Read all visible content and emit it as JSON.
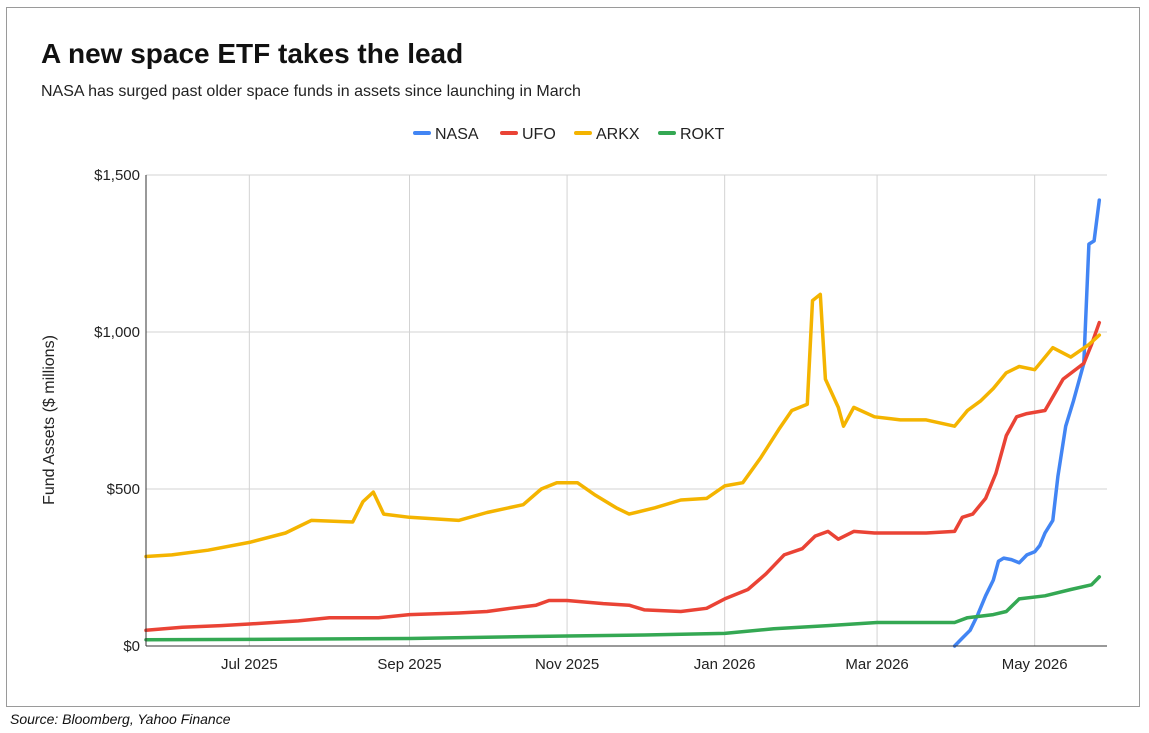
{
  "title": "A new space ETF takes the lead",
  "subtitle": "NASA has surged past older space funds in assets since launching in March",
  "source": "Source: Bloomberg, Yahoo Finance",
  "chart_data": {
    "type": "line",
    "title": "A new space ETF takes the lead",
    "subtitle": "NASA has surged past older space funds in assets since launching in March",
    "xlabel": "",
    "ylabel": "Fund Assets ($ millions)",
    "ylim": [
      0,
      1500
    ],
    "yticks": [
      0,
      500,
      1000,
      1500
    ],
    "ytick_labels": [
      "$0",
      "$500",
      "$1,000",
      "$1,500"
    ],
    "xlim": [
      "2025-05-22",
      "2026-05-29"
    ],
    "xticks": [
      {
        "date": "2025-07-01",
        "label": "Jul 2025"
      },
      {
        "date": "2025-09-01",
        "label": "Sep 2025"
      },
      {
        "date": "2025-11-01",
        "label": "Nov 2025"
      },
      {
        "date": "2026-01-01",
        "label": "Jan 2026"
      },
      {
        "date": "2026-03-01",
        "label": "Mar 2026"
      },
      {
        "date": "2026-05-01",
        "label": "May 2026"
      }
    ],
    "grid": true,
    "legend_position": "top-center",
    "series": [
      {
        "name": "NASA",
        "color": "#4285F4",
        "points": [
          [
            "2026-03-31",
            0
          ],
          [
            "2026-04-03",
            25
          ],
          [
            "2026-04-06",
            50
          ],
          [
            "2026-04-09",
            100
          ],
          [
            "2026-04-12",
            160
          ],
          [
            "2026-04-15",
            210
          ],
          [
            "2026-04-17",
            270
          ],
          [
            "2026-04-19",
            280
          ],
          [
            "2026-04-22",
            275
          ],
          [
            "2026-04-25",
            265
          ],
          [
            "2026-04-28",
            290
          ],
          [
            "2026-05-01",
            300
          ],
          [
            "2026-05-03",
            320
          ],
          [
            "2026-05-05",
            360
          ],
          [
            "2026-05-08",
            400
          ],
          [
            "2026-05-10",
            540
          ],
          [
            "2026-05-13",
            700
          ],
          [
            "2026-05-16",
            780
          ],
          [
            "2026-05-20",
            900
          ],
          [
            "2026-05-22",
            1280
          ],
          [
            "2026-05-24",
            1290
          ],
          [
            "2026-05-26",
            1420
          ]
        ]
      },
      {
        "name": "UFO",
        "color": "#EA4335",
        "points": [
          [
            "2025-05-22",
            50
          ],
          [
            "2025-06-05",
            60
          ],
          [
            "2025-06-20",
            65
          ],
          [
            "2025-07-01",
            70
          ],
          [
            "2025-07-20",
            80
          ],
          [
            "2025-08-01",
            90
          ],
          [
            "2025-08-20",
            90
          ],
          [
            "2025-09-01",
            100
          ],
          [
            "2025-09-20",
            105
          ],
          [
            "2025-10-01",
            110
          ],
          [
            "2025-10-10",
            120
          ],
          [
            "2025-10-20",
            130
          ],
          [
            "2025-10-25",
            145
          ],
          [
            "2025-11-01",
            145
          ],
          [
            "2025-11-15",
            135
          ],
          [
            "2025-11-25",
            130
          ],
          [
            "2025-12-01",
            115
          ],
          [
            "2025-12-15",
            110
          ],
          [
            "2025-12-25",
            120
          ],
          [
            "2026-01-01",
            150
          ],
          [
            "2026-01-10",
            180
          ],
          [
            "2026-01-17",
            230
          ],
          [
            "2026-01-24",
            290
          ],
          [
            "2026-01-31",
            310
          ],
          [
            "2026-02-05",
            350
          ],
          [
            "2026-02-10",
            365
          ],
          [
            "2026-02-14",
            340
          ],
          [
            "2026-02-20",
            365
          ],
          [
            "2026-02-28",
            360
          ],
          [
            "2026-03-10",
            360
          ],
          [
            "2026-03-20",
            360
          ],
          [
            "2026-03-31",
            365
          ],
          [
            "2026-04-03",
            410
          ],
          [
            "2026-04-07",
            420
          ],
          [
            "2026-04-12",
            470
          ],
          [
            "2026-04-16",
            550
          ],
          [
            "2026-04-20",
            670
          ],
          [
            "2026-04-24",
            730
          ],
          [
            "2026-04-28",
            740
          ],
          [
            "2026-05-05",
            750
          ],
          [
            "2026-05-12",
            850
          ],
          [
            "2026-05-20",
            900
          ],
          [
            "2026-05-23",
            960
          ],
          [
            "2026-05-26",
            1030
          ]
        ]
      },
      {
        "name": "ARKX",
        "color": "#F4B400",
        "points": [
          [
            "2025-05-22",
            285
          ],
          [
            "2025-06-01",
            290
          ],
          [
            "2025-06-15",
            305
          ],
          [
            "2025-07-01",
            330
          ],
          [
            "2025-07-15",
            360
          ],
          [
            "2025-07-25",
            400
          ],
          [
            "2025-08-10",
            395
          ],
          [
            "2025-08-14",
            460
          ],
          [
            "2025-08-18",
            490
          ],
          [
            "2025-08-22",
            420
          ],
          [
            "2025-09-01",
            410
          ],
          [
            "2025-09-20",
            400
          ],
          [
            "2025-10-01",
            425
          ],
          [
            "2025-10-15",
            450
          ],
          [
            "2025-10-22",
            500
          ],
          [
            "2025-10-28",
            520
          ],
          [
            "2025-11-05",
            520
          ],
          [
            "2025-11-12",
            480
          ],
          [
            "2025-11-20",
            440
          ],
          [
            "2025-11-25",
            420
          ],
          [
            "2025-12-05",
            440
          ],
          [
            "2025-12-15",
            465
          ],
          [
            "2025-12-25",
            470
          ],
          [
            "2026-01-01",
            510
          ],
          [
            "2026-01-08",
            520
          ],
          [
            "2026-01-15",
            600
          ],
          [
            "2026-01-22",
            690
          ],
          [
            "2026-01-27",
            750
          ],
          [
            "2026-02-02",
            770
          ],
          [
            "2026-02-04",
            1100
          ],
          [
            "2026-02-07",
            1120
          ],
          [
            "2026-02-09",
            850
          ],
          [
            "2026-02-14",
            760
          ],
          [
            "2026-02-16",
            700
          ],
          [
            "2026-02-20",
            760
          ],
          [
            "2026-02-28",
            730
          ],
          [
            "2026-03-10",
            720
          ],
          [
            "2026-03-20",
            720
          ],
          [
            "2026-03-31",
            700
          ],
          [
            "2026-04-05",
            750
          ],
          [
            "2026-04-10",
            780
          ],
          [
            "2026-04-15",
            820
          ],
          [
            "2026-04-20",
            870
          ],
          [
            "2026-04-25",
            890
          ],
          [
            "2026-05-01",
            880
          ],
          [
            "2026-05-08",
            950
          ],
          [
            "2026-05-15",
            920
          ],
          [
            "2026-05-22",
            960
          ],
          [
            "2026-05-26",
            990
          ]
        ]
      },
      {
        "name": "ROKT",
        "color": "#34A853",
        "points": [
          [
            "2025-05-22",
            20
          ],
          [
            "2025-07-01",
            21
          ],
          [
            "2025-09-01",
            24
          ],
          [
            "2025-10-15",
            30
          ],
          [
            "2025-11-01",
            32
          ],
          [
            "2025-12-01",
            35
          ],
          [
            "2026-01-01",
            40
          ],
          [
            "2026-01-20",
            55
          ],
          [
            "2026-02-10",
            65
          ],
          [
            "2026-03-01",
            75
          ],
          [
            "2026-03-31",
            75
          ],
          [
            "2026-04-05",
            90
          ],
          [
            "2026-04-15",
            100
          ],
          [
            "2026-04-20",
            110
          ],
          [
            "2026-04-25",
            150
          ],
          [
            "2026-05-05",
            160
          ],
          [
            "2026-05-15",
            180
          ],
          [
            "2026-05-23",
            195
          ],
          [
            "2026-05-26",
            220
          ]
        ]
      }
    ]
  }
}
